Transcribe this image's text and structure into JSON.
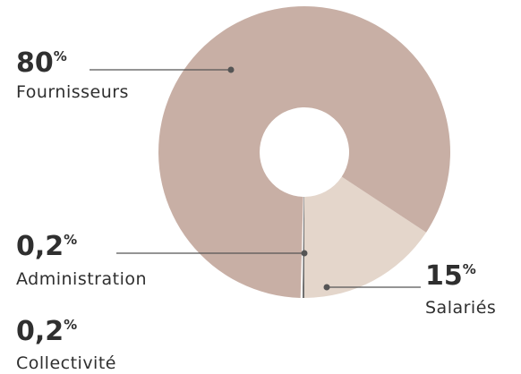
{
  "chart_data": {
    "type": "donut",
    "categories": [
      "Fournisseurs",
      "Salariés",
      "Administration",
      "Collectivité"
    ],
    "values": [
      80,
      15,
      0.2,
      0.2
    ],
    "value_labels": [
      "80",
      "15",
      "0,2",
      "0,2"
    ],
    "unit": "%",
    "colors": [
      "#c8afa5",
      "#e4d6cb",
      "#6f6f6f",
      "#ffffff"
    ]
  }
}
